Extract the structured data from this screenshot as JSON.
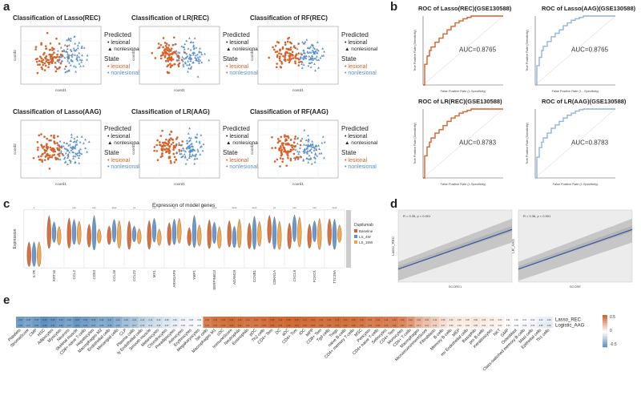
{
  "panels": {
    "a": "a",
    "b": "b",
    "c": "c",
    "d": "d",
    "e": "e"
  },
  "colors": {
    "orange": "#d4622a",
    "blue": "#5b8fc9",
    "lightblue": "#8fb4e0",
    "gray_band": "#bdbdbd",
    "line": "#3155a6"
  },
  "chart_data": [
    {
      "id": "a1",
      "type": "scatter",
      "title": "Classification of Lasso(REC)",
      "xlabel": "coord1",
      "ylabel": "coord2"
    },
    {
      "id": "a2",
      "type": "scatter",
      "title": "Classification of LR(REC)",
      "xlabel": "coord1",
      "ylabel": "coord2"
    },
    {
      "id": "a3",
      "type": "scatter",
      "title": "Classification of RF(REC)",
      "xlabel": "coord1",
      "ylabel": "coord2"
    },
    {
      "id": "a4",
      "type": "scatter",
      "title": "Classification of Lasso(AAG)",
      "xlabel": "coord1",
      "ylabel": "coord2"
    },
    {
      "id": "a5",
      "type": "scatter",
      "title": "Classification of LR(AAG)",
      "xlabel": "coord1",
      "ylabel": "coord2"
    },
    {
      "id": "a6",
      "type": "scatter",
      "title": "Classification of RF(AAG)",
      "xlabel": "coord1",
      "ylabel": "coord2"
    },
    {
      "id": "b1",
      "type": "line",
      "title": "ROC of Lasso(REC)(GSE130588)",
      "auc": "AUC=0.8765",
      "xlabel": "False Positive Rate (1-Specificity)",
      "ylabel": "True Positive Rate (Sensitivity)",
      "x": [
        0,
        0.02,
        0.05,
        0.08,
        0.1,
        0.15,
        0.2,
        0.25,
        0.3,
        0.35,
        0.4,
        0.45,
        0.5,
        0.55,
        0.6,
        0.7,
        0.8,
        0.9,
        1
      ],
      "y": [
        0,
        0.3,
        0.42,
        0.5,
        0.55,
        0.62,
        0.68,
        0.74,
        0.8,
        0.85,
        0.9,
        0.93,
        0.96,
        0.98,
        1,
        1,
        1,
        1,
        1
      ]
    },
    {
      "id": "b2",
      "type": "line",
      "title": "ROC of Lasso(AAG)(GSE130588)",
      "auc": "AUC=0.8765",
      "xlabel": "False Positive Rate (1 - Specificity)",
      "ylabel": "True Positive Rate (Sensitivity)",
      "x": [
        0,
        0.02,
        0.05,
        0.08,
        0.1,
        0.15,
        0.2,
        0.25,
        0.3,
        0.35,
        0.4,
        0.45,
        0.5,
        0.55,
        0.6,
        0.7,
        0.8,
        0.9,
        1
      ],
      "y": [
        0,
        0.28,
        0.4,
        0.5,
        0.56,
        0.63,
        0.7,
        0.75,
        0.8,
        0.86,
        0.9,
        0.94,
        0.96,
        0.98,
        1,
        1,
        1,
        1,
        1
      ]
    },
    {
      "id": "b3",
      "type": "line",
      "title": "ROC of LR(REC)(GSE130588)",
      "auc": "AUC=0.8783",
      "xlabel": "False Positive Rate (1-Specificity)",
      "ylabel": "True Positive Rate (Sensitivity)",
      "x": [
        0,
        0.02,
        0.05,
        0.08,
        0.1,
        0.15,
        0.2,
        0.25,
        0.3,
        0.35,
        0.4,
        0.45,
        0.5,
        0.55,
        0.6,
        0.7,
        0.8,
        0.9,
        1
      ],
      "y": [
        0,
        0.32,
        0.45,
        0.52,
        0.58,
        0.65,
        0.7,
        0.76,
        0.82,
        0.87,
        0.9,
        0.94,
        0.96,
        0.98,
        1,
        1,
        1,
        1,
        1
      ]
    },
    {
      "id": "b4",
      "type": "line",
      "title": "ROC of LR(AAG)(GSE130588)",
      "auc": "AUC=0.8783",
      "xlabel": "False Positive Rate (1-Specificity)",
      "ylabel": "True Positive Rate (Sensitivity)",
      "x": [
        0,
        0.02,
        0.05,
        0.08,
        0.1,
        0.15,
        0.2,
        0.25,
        0.3,
        0.35,
        0.4,
        0.45,
        0.5,
        0.55,
        0.6,
        0.7,
        0.8,
        0.9,
        1
      ],
      "y": [
        0,
        0.3,
        0.44,
        0.52,
        0.58,
        0.65,
        0.72,
        0.77,
        0.82,
        0.87,
        0.91,
        0.94,
        0.97,
        0.99,
        1,
        1,
        1,
        1,
        1
      ]
    },
    {
      "id": "c",
      "type": "violin",
      "title": "Expression of model genes",
      "ylabel": "Expression",
      "legend_title": "Dupilumab",
      "legend": [
        "Baseline",
        "LS_4W",
        "LS_16W"
      ],
      "genes": [
        "IL7R",
        "KRT16",
        "CCL2",
        "CD53",
        "CCL18",
        "CCL22",
        "MX1",
        "ARHGAP9",
        "YMP1",
        "SERPINB13",
        "ADAM19",
        "CCNB1",
        "CDKN1A",
        "CXCL8",
        "FOXO1",
        "TTC39A"
      ],
      "signif": [
        "*",
        "",
        "***",
        "***",
        "****",
        "**",
        "***",
        "**",
        "",
        "****",
        "****",
        "****",
        "**",
        "***",
        "***",
        "****"
      ]
    },
    {
      "id": "d1",
      "type": "scatter",
      "stat": "R = 0.35, p < 0.001",
      "xlabel": "SCORE1",
      "ylabel": "Lasso_REC"
    },
    {
      "id": "d2",
      "type": "scatter",
      "stat": "R = 0.36, p < 0.001",
      "xlabel": "SCORE",
      "ylabel": "LR_AAG"
    },
    {
      "id": "e",
      "type": "heatmap",
      "rows": [
        "Lasso_REC",
        "Logistic_AAG"
      ],
      "scale_ticks": [
        "0.5",
        "0",
        "-0.5"
      ],
      "columns": [
        "Platelets",
        "StromaScore",
        "CMP",
        "HSC",
        "Adipocytes",
        "Myocytes",
        "Neurons",
        "Skeletal muscle",
        "CD8+ naive T-cells",
        "Hepatocytes",
        "Macrophages M2",
        "Endothelial cells",
        "Mesangial cells",
        "CLP",
        "Plasma cells",
        "ly Endothelial cells",
        "Smooth muscle",
        "Melanocytes",
        "Chondrocytes",
        "Preadipocytes",
        "Astrocytes",
        "Erythrocytes",
        "Megakaryocytes",
        "NK cells",
        "Macrophages M1",
        "cDC",
        "ImmuneScore",
        "Neutrophils",
        "Eosinophils",
        "pDC",
        "Th2 cells",
        "CD4+ Tem",
        "DC",
        "aDC",
        "CD4+ Tcm",
        "iDC",
        "MPP",
        "CD8+ Tem",
        "Tgd cells",
        "Tregs",
        "naive B-cells",
        "CD4+ memory T-cells",
        "MSC",
        "Pericytes",
        "CD4+ naive T-cells",
        "Sebocytes",
        "CD4+ Tem",
        "Monocytes",
        "CD4+ T-cells",
        "Macrophages",
        "MicroenvironmentScore",
        "Fibroblasts",
        "B-cells",
        "Memory B-cells",
        "MEP",
        "mv Endothelial cells",
        "Basophils",
        "pro B-cells",
        "Keratinocytes",
        "NKT",
        "GMP",
        "Osteoblast",
        "Class-switched memory B-cells",
        "Mast cells",
        "Epithelial cells",
        "Th1 cells"
      ],
      "values": [
        -0.3,
        -0.28,
        -0.3,
        -0.34,
        -0.32,
        -0.3,
        -0.28,
        -0.32,
        -0.3,
        -0.28,
        -0.26,
        -0.27,
        -0.24,
        -0.2,
        -0.18,
        -0.14,
        -0.12,
        -0.1,
        -0.08,
        -0.06,
        -0.04,
        -0.03,
        -0.02,
        0.3,
        0.32,
        0.33,
        0.34,
        0.33,
        0.32,
        0.32,
        0.33,
        0.35,
        0.34,
        0.35,
        0.35,
        0.34,
        0.34,
        0.33,
        0.33,
        0.34,
        0.33,
        0.33,
        0.32,
        0.3,
        0.31,
        0.3,
        0.3,
        0.28,
        0.24,
        0.18,
        0.15,
        0.12,
        0.08,
        0.06,
        0.05,
        0.05,
        0.06,
        0.05,
        0.04,
        0.03,
        0.01,
        0.0,
        -0.01,
        -0.02,
        -0.04,
        -0.05
      ],
      "values2": [
        -0.29,
        -0.27,
        -0.3,
        -0.33,
        -0.31,
        -0.29,
        -0.27,
        -0.31,
        -0.29,
        -0.27,
        -0.25,
        -0.26,
        -0.23,
        -0.19,
        -0.17,
        -0.13,
        -0.11,
        -0.09,
        -0.07,
        -0.05,
        -0.03,
        -0.02,
        -0.01,
        0.29,
        0.31,
        0.32,
        0.33,
        0.32,
        0.31,
        0.31,
        0.32,
        0.34,
        0.33,
        0.34,
        0.34,
        0.33,
        0.33,
        0.32,
        0.32,
        0.33,
        0.32,
        0.32,
        0.31,
        0.29,
        0.3,
        0.29,
        0.29,
        0.27,
        0.23,
        0.17,
        0.14,
        0.11,
        0.07,
        0.05,
        0.04,
        0.04,
        0.05,
        0.04,
        0.03,
        0.02,
        0.0,
        -0.01,
        -0.02,
        -0.03,
        -0.05,
        -0.06
      ]
    }
  ],
  "a_legend": {
    "predicted": "Predicted",
    "state": "State",
    "lesional": "lesional",
    "nonlesional": "nonlesional"
  }
}
